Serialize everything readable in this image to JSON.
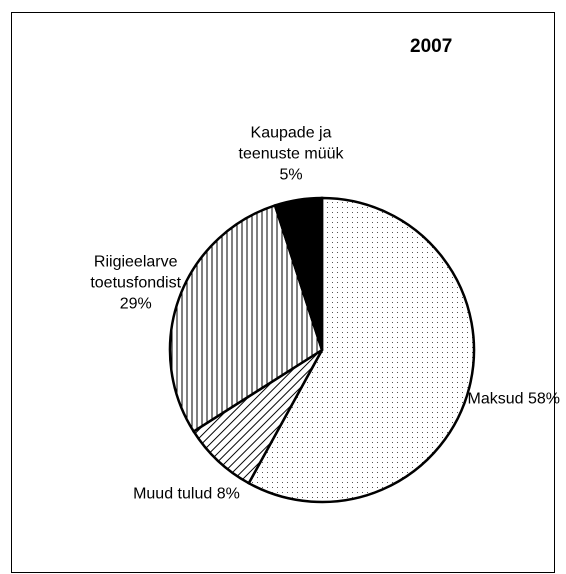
{
  "chart_data": {
    "type": "pie",
    "title": "2007",
    "categories": [
      "Maksud",
      "Muud tulud",
      "Riigieelarve toetusfondist",
      "Kaupade ja teenuste müük"
    ],
    "values": [
      58,
      8,
      29,
      5
    ],
    "value_labels": [
      "58%",
      "8%",
      "29%",
      "5%"
    ],
    "fills": [
      "dots",
      "diagonal",
      "vertical",
      "solid"
    ]
  }
}
